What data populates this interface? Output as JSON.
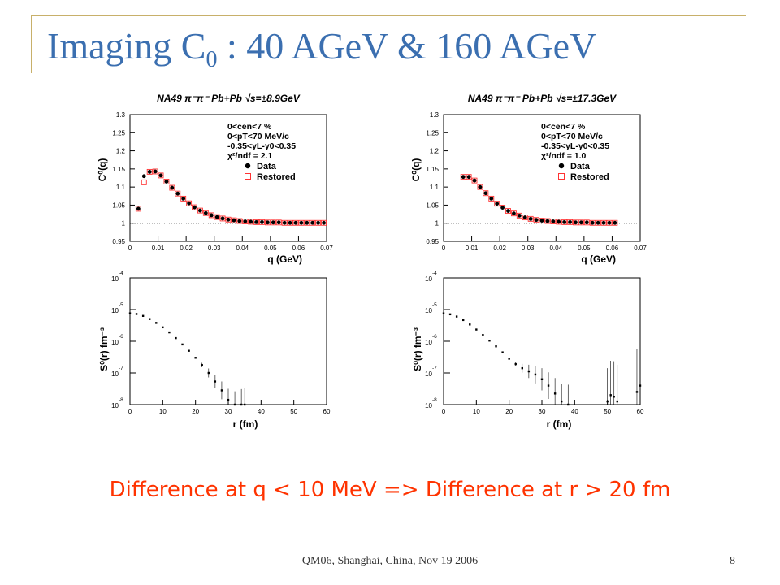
{
  "slide": {
    "title_main": "Imaging C",
    "title_sub": "0",
    "title_rest": " : 40 AGeV & 160 AGeV",
    "caption": "Difference at q < 10 MeV => Difference at r > 20 fm",
    "footer": "QM06, Shanghai, China, Nov 19 2006",
    "page": "8"
  },
  "chart_data": [
    {
      "type": "scatter",
      "title": "NA49 π⁻π⁻ Pb+Pb √s=±8.9GeV",
      "xlabel": "q (GeV)",
      "ylabel": "C⁰(q)",
      "xlim": [
        0,
        0.07
      ],
      "ylim": [
        0.95,
        1.3
      ],
      "xticks": [
        "0",
        "0.01",
        "0.02",
        "0.03",
        "0.04",
        "0.05",
        "0.06",
        "0.07"
      ],
      "yticks": [
        "0.95",
        "1",
        "1.05",
        "1.1",
        "1.15",
        "1.2",
        "1.25",
        "1.3"
      ],
      "annotations": [
        "0<cen<7 %",
        "0<pT<70 MeV/c",
        "-0.35<yL-y0<0.35",
        "χ²/ndf = 2.1"
      ],
      "legend": [
        "Data",
        "Restored"
      ],
      "legend_position": "top-right",
      "reference_line": 1,
      "series": [
        {
          "name": "Data",
          "x": [
            0.003,
            0.005,
            0.007,
            0.009,
            0.011,
            0.013,
            0.015,
            0.017,
            0.019,
            0.021,
            0.023,
            0.025,
            0.027,
            0.029,
            0.031,
            0.033,
            0.035,
            0.037,
            0.039,
            0.041,
            0.043,
            0.045,
            0.047,
            0.049,
            0.051,
            0.053,
            0.055,
            0.057,
            0.059,
            0.061,
            0.063,
            0.065,
            0.067,
            0.069
          ],
          "y": [
            1.04,
            1.13,
            1.142,
            1.143,
            1.132,
            1.115,
            1.098,
            1.082,
            1.068,
            1.055,
            1.044,
            1.035,
            1.028,
            1.022,
            1.017,
            1.013,
            1.01,
            1.008,
            1.006,
            1.005,
            1.004,
            1.003,
            1.003,
            1.002,
            1.002,
            1.002,
            1.001,
            1.001,
            1.001,
            1.001,
            1.001,
            1.001,
            1.001,
            1.001
          ]
        },
        {
          "name": "Restored",
          "x": [
            0.003,
            0.005,
            0.007,
            0.009,
            0.011,
            0.013,
            0.015,
            0.017,
            0.019,
            0.021,
            0.023,
            0.025,
            0.027,
            0.029,
            0.031,
            0.033,
            0.035,
            0.037,
            0.039,
            0.041,
            0.043,
            0.045,
            0.047,
            0.049,
            0.051,
            0.053,
            0.055,
            0.057,
            0.059,
            0.061,
            0.063,
            0.065,
            0.067,
            0.069
          ],
          "y": [
            1.04,
            1.113,
            1.142,
            1.143,
            1.132,
            1.115,
            1.098,
            1.082,
            1.068,
            1.055,
            1.044,
            1.035,
            1.028,
            1.022,
            1.017,
            1.013,
            1.01,
            1.008,
            1.006,
            1.005,
            1.004,
            1.003,
            1.003,
            1.002,
            1.002,
            1.002,
            1.001,
            1.001,
            1.001,
            1.001,
            1.001,
            1.001,
            1.001,
            1.001
          ]
        }
      ]
    },
    {
      "type": "scatter",
      "title": "NA49 π⁻π⁻ Pb+Pb √s=±17.3GeV",
      "xlabel": "q (GeV)",
      "ylabel": "C⁰(q)",
      "xlim": [
        0,
        0.07
      ],
      "ylim": [
        0.95,
        1.3
      ],
      "xticks": [
        "0",
        "0.01",
        "0.02",
        "0.03",
        "0.04",
        "0.05",
        "0.06",
        "0.07"
      ],
      "yticks": [
        "0.95",
        "1",
        "1.05",
        "1.1",
        "1.15",
        "1.2",
        "1.25",
        "1.3"
      ],
      "annotations": [
        "0<cen<7 %",
        "0<pT<70 MeV/c",
        "-0.35<yL-y0<0.35",
        "χ²/ndf = 1.0"
      ],
      "legend": [
        "Data",
        "Restored"
      ],
      "legend_position": "top-right",
      "reference_line": 1,
      "series": [
        {
          "name": "Data",
          "x": [
            0.007,
            0.009,
            0.011,
            0.013,
            0.015,
            0.017,
            0.019,
            0.021,
            0.023,
            0.025,
            0.027,
            0.029,
            0.031,
            0.033,
            0.035,
            0.037,
            0.039,
            0.041,
            0.043,
            0.045,
            0.047,
            0.049,
            0.051,
            0.053,
            0.055,
            0.057,
            0.059,
            0.061
          ],
          "y": [
            1.128,
            1.128,
            1.118,
            1.1,
            1.083,
            1.068,
            1.054,
            1.043,
            1.034,
            1.027,
            1.021,
            1.016,
            1.012,
            1.009,
            1.007,
            1.006,
            1.005,
            1.004,
            1.003,
            1.003,
            1.002,
            1.002,
            1.002,
            1.001,
            1.001,
            1.001,
            1.001,
            1.001
          ]
        },
        {
          "name": "Restored",
          "x": [
            0.007,
            0.009,
            0.011,
            0.013,
            0.015,
            0.017,
            0.019,
            0.021,
            0.023,
            0.025,
            0.027,
            0.029,
            0.031,
            0.033,
            0.035,
            0.037,
            0.039,
            0.041,
            0.043,
            0.045,
            0.047,
            0.049,
            0.051,
            0.053,
            0.055,
            0.057,
            0.059,
            0.061
          ],
          "y": [
            1.128,
            1.128,
            1.118,
            1.1,
            1.083,
            1.068,
            1.054,
            1.043,
            1.034,
            1.027,
            1.021,
            1.016,
            1.012,
            1.009,
            1.007,
            1.006,
            1.005,
            1.004,
            1.003,
            1.003,
            1.002,
            1.002,
            1.002,
            1.001,
            1.001,
            1.001,
            1.001,
            1.001
          ]
        }
      ]
    },
    {
      "type": "scatter",
      "title": "",
      "xlabel": "r (fm)",
      "ylabel": "S⁰(r) fm⁻³",
      "xlim": [
        0,
        60
      ],
      "ylim_exponents": [
        -8,
        -4
      ],
      "log_y": true,
      "xticks": [
        "0",
        "10",
        "20",
        "30",
        "40",
        "50",
        "60"
      ],
      "ytick_exponents": [
        "-4",
        "-5",
        "-6",
        "-7",
        "-8"
      ],
      "series": [
        {
          "name": "",
          "x": [
            0,
            2,
            4,
            6,
            8,
            10,
            12,
            14,
            16,
            18,
            20,
            22,
            24,
            26,
            28,
            30,
            32,
            34,
            35
          ],
          "log10_y": [
            -5.12,
            -5.14,
            -5.2,
            -5.3,
            -5.42,
            -5.56,
            -5.72,
            -5.9,
            -6.1,
            -6.3,
            -6.52,
            -6.75,
            -7.0,
            -7.27,
            -7.55,
            -7.85,
            -8.0,
            -8.0,
            -8.0
          ]
        }
      ]
    },
    {
      "type": "scatter",
      "title": "",
      "xlabel": "r (fm)",
      "ylabel": "S⁰(r) fm⁻³",
      "xlim": [
        0,
        60
      ],
      "ylim_exponents": [
        -8,
        -4
      ],
      "log_y": true,
      "xticks": [
        "0",
        "10",
        "20",
        "30",
        "40",
        "50",
        "60"
      ],
      "ytick_exponents": [
        "-4",
        "-5",
        "-6",
        "-7",
        "-8"
      ],
      "series": [
        {
          "name": "",
          "x": [
            0,
            2,
            4,
            6,
            8,
            10,
            12,
            14,
            16,
            18,
            20,
            22,
            24,
            26,
            28,
            30,
            32,
            34,
            36,
            38,
            50,
            51,
            52,
            53,
            59,
            60
          ],
          "log10_y": [
            -5.12,
            -5.15,
            -5.22,
            -5.33,
            -5.47,
            -5.63,
            -5.8,
            -5.98,
            -6.16,
            -6.35,
            -6.55,
            -6.72,
            -6.85,
            -6.95,
            -7.05,
            -7.2,
            -7.4,
            -7.65,
            -7.9,
            -8.0,
            -7.9,
            -7.7,
            -7.75,
            -7.9,
            -7.6,
            -7.4
          ]
        }
      ]
    }
  ]
}
